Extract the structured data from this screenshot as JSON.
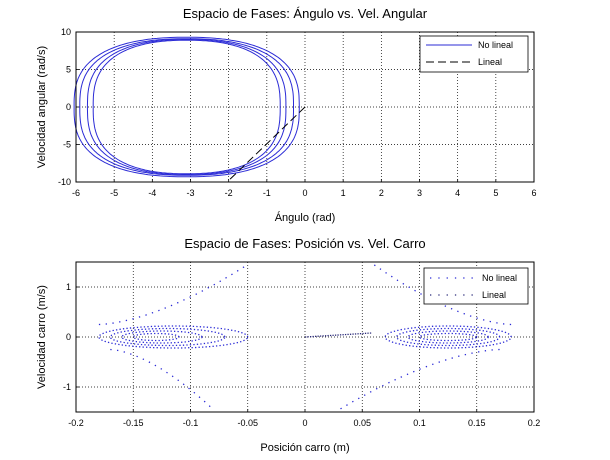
{
  "chart_data": [
    {
      "type": "line",
      "title": "Espacio de Fases: Ángulo vs. Vel. Angular",
      "xlabel": "Ángulo (rad)",
      "ylabel": "Velocidad angular (rad/s)",
      "xlim": [
        -6,
        6
      ],
      "ylim": [
        -10,
        10
      ],
      "xticks": [
        "-6",
        "-5",
        "-4",
        "-3",
        "-2",
        "-1",
        "0",
        "1",
        "2",
        "3",
        "4",
        "5",
        "6"
      ],
      "yticks": [
        "10",
        "5",
        "0",
        "-5",
        "-10"
      ],
      "grid": true,
      "legend_position": "top-right",
      "series": [
        {
          "name": "No lineal",
          "style": "solid",
          "color": "#2b2bd6",
          "curves": [
            {
              "center": -3.1,
              "half_width": 2.95,
              "peak": 9.3
            },
            {
              "center": -3.1,
              "half_width": 2.8,
              "peak": 9.1
            },
            {
              "center": -3.1,
              "half_width": 2.6,
              "peak": 9.0
            },
            {
              "center": -3.1,
              "half_width": 2.45,
              "peak": 8.9
            }
          ]
        },
        {
          "name": "Lineal",
          "style": "dashed",
          "color": "#000000",
          "points": [
            [
              0,
              0
            ],
            [
              -2.0,
              -9.8
            ]
          ]
        }
      ]
    },
    {
      "type": "scatter",
      "title": "Espacio de Fases: Posición vs. Vel. Carro",
      "xlabel": "Posición carro (m)",
      "ylabel": "Velocidad carro (m/s)",
      "xlim": [
        -0.2,
        0.2
      ],
      "ylim": [
        -1.5,
        1.5
      ],
      "xticks": [
        "-0.2",
        "-0.15",
        "-0.1",
        "-0.05",
        "0",
        "0.05",
        "0.1",
        "0.15",
        "0.2"
      ],
      "yticks": [
        "1",
        "0",
        "-1"
      ],
      "grid": true,
      "legend_position": "top-right",
      "series": [
        {
          "name": "No lineal",
          "style": "dotted",
          "color": "#2b2bd6",
          "loops": [
            {
              "x_min": -0.18,
              "x_max": -0.05,
              "peak": 0.22
            },
            {
              "x_min": -0.17,
              "x_max": -0.07,
              "peak": 0.17
            },
            {
              "x_min": -0.16,
              "x_max": -0.09,
              "peak": 0.12
            },
            {
              "x_min": -0.15,
              "x_max": -0.11,
              "peak": 0.07
            },
            {
              "x_min": 0.07,
              "x_max": 0.18,
              "peak": 0.22
            },
            {
              "x_min": 0.08,
              "x_max": 0.17,
              "peak": 0.17
            },
            {
              "x_min": 0.09,
              "x_max": 0.16,
              "peak": 0.12
            },
            {
              "x_min": 0.1,
              "x_max": 0.15,
              "peak": 0.07
            }
          ],
          "arcs": [
            {
              "x_from": -0.18,
              "y_from": 0.25,
              "x_to": -0.05,
              "y_to": 1.45
            },
            {
              "x_from": -0.17,
              "y_from": -0.25,
              "x_to": -0.08,
              "y_to": -1.45
            },
            {
              "x_from": 0.17,
              "y_from": -0.25,
              "x_to": 0.03,
              "y_to": -1.45
            },
            {
              "x_from": 0.18,
              "y_from": 0.25,
              "x_to": 0.06,
              "y_to": 1.45
            }
          ]
        },
        {
          "name": "Lineal",
          "style": "dotted",
          "color": "#2b2b7a",
          "points": [
            [
              0,
              0
            ],
            [
              0.058,
              0.08
            ]
          ]
        }
      ]
    }
  ]
}
